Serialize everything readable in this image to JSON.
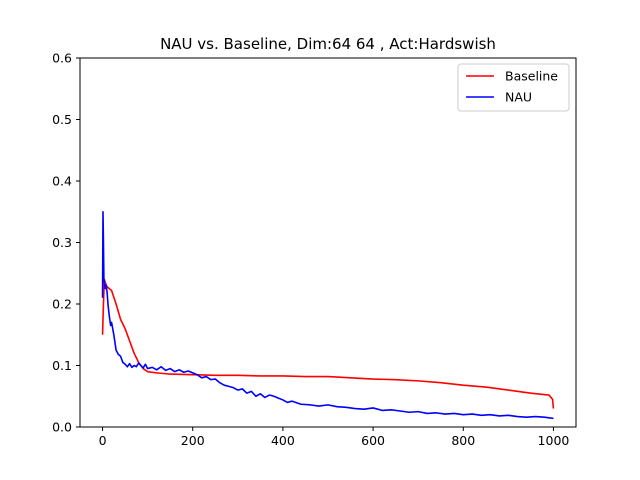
{
  "chart_data": {
    "type": "line",
    "title": "NAU vs. Baseline, Dim:64 64 , Act:Hardswish",
    "xlabel": "",
    "ylabel": "",
    "xlim": [
      -50,
      1050
    ],
    "ylim": [
      0.0,
      0.6
    ],
    "xticks": [
      0,
      200,
      400,
      600,
      800,
      1000
    ],
    "yticks": [
      0.0,
      0.1,
      0.2,
      0.3,
      0.4,
      0.5,
      0.6
    ],
    "xtick_labels": [
      "0",
      "200",
      "400",
      "600",
      "800",
      "1000"
    ],
    "ytick_labels": [
      "0.0",
      "0.1",
      "0.2",
      "0.3",
      "0.4",
      "0.5",
      "0.6"
    ],
    "grid": false,
    "legend_position": "top-right",
    "series": [
      {
        "name": "Baseline",
        "color": "#ff0000",
        "x": [
          0,
          2,
          4,
          6,
          10,
          15,
          20,
          30,
          40,
          50,
          60,
          70,
          80,
          90,
          100,
          120,
          150,
          200,
          250,
          300,
          350,
          400,
          450,
          500,
          550,
          600,
          650,
          700,
          750,
          800,
          850,
          900,
          950,
          990,
          998,
          1000
        ],
        "y": [
          0.15,
          0.2,
          0.24,
          0.235,
          0.228,
          0.225,
          0.222,
          0.2,
          0.175,
          0.16,
          0.14,
          0.12,
          0.105,
          0.095,
          0.09,
          0.088,
          0.086,
          0.085,
          0.084,
          0.084,
          0.083,
          0.083,
          0.082,
          0.082,
          0.08,
          0.078,
          0.077,
          0.075,
          0.072,
          0.068,
          0.065,
          0.06,
          0.055,
          0.052,
          0.045,
          0.03
        ]
      },
      {
        "name": "NAU",
        "color": "#0000ff",
        "x": [
          0,
          1,
          2,
          3,
          4,
          6,
          8,
          10,
          12,
          15,
          18,
          20,
          25,
          30,
          35,
          40,
          45,
          50,
          55,
          60,
          65,
          70,
          75,
          80,
          85,
          90,
          95,
          100,
          110,
          120,
          130,
          140,
          150,
          160,
          170,
          180,
          190,
          200,
          210,
          220,
          230,
          240,
          250,
          260,
          270,
          280,
          290,
          300,
          310,
          320,
          330,
          340,
          350,
          360,
          370,
          380,
          390,
          400,
          410,
          420,
          440,
          460,
          480,
          500,
          520,
          540,
          560,
          580,
          600,
          620,
          640,
          660,
          680,
          700,
          720,
          740,
          760,
          780,
          800,
          820,
          840,
          860,
          880,
          900,
          920,
          940,
          960,
          980,
          990,
          1000
        ],
        "y": [
          0.21,
          0.35,
          0.3,
          0.24,
          0.235,
          0.225,
          0.23,
          0.22,
          0.2,
          0.18,
          0.165,
          0.17,
          0.15,
          0.125,
          0.118,
          0.115,
          0.105,
          0.102,
          0.098,
          0.103,
          0.097,
          0.1,
          0.098,
          0.104,
          0.1,
          0.096,
          0.102,
          0.095,
          0.097,
          0.093,
          0.098,
          0.092,
          0.095,
          0.09,
          0.093,
          0.089,
          0.091,
          0.088,
          0.085,
          0.08,
          0.082,
          0.077,
          0.078,
          0.072,
          0.068,
          0.066,
          0.064,
          0.06,
          0.062,
          0.055,
          0.058,
          0.05,
          0.054,
          0.048,
          0.052,
          0.05,
          0.047,
          0.044,
          0.04,
          0.042,
          0.037,
          0.036,
          0.034,
          0.036,
          0.033,
          0.032,
          0.03,
          0.029,
          0.031,
          0.027,
          0.028,
          0.026,
          0.024,
          0.025,
          0.022,
          0.023,
          0.021,
          0.022,
          0.02,
          0.021,
          0.019,
          0.02,
          0.018,
          0.019,
          0.017,
          0.016,
          0.017,
          0.016,
          0.015,
          0.014
        ]
      }
    ]
  }
}
